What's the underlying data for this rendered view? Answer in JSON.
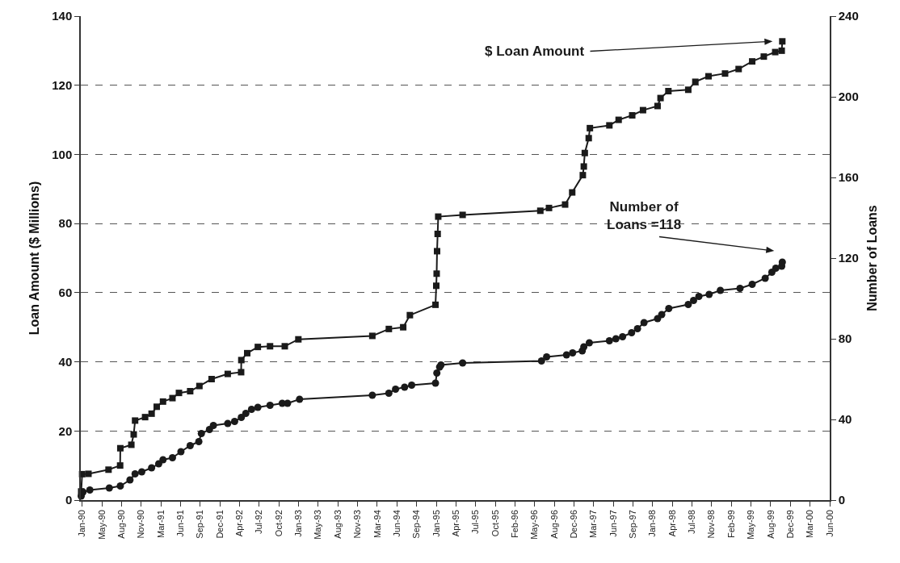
{
  "chart_data": {
    "type": "line",
    "ylabel": "Loan Amount ($ Millions)",
    "y2label": "Number of Loans",
    "xlim": [
      "1990-01-20",
      "2000-06-23"
    ],
    "xticks": [
      {
        "value": "1990-01-27",
        "label": "Jan-90"
      },
      {
        "value": "1990-05-07",
        "label": "May-90"
      },
      {
        "value": "1990-08-15",
        "label": "Aug-90"
      },
      {
        "value": "1990-11-23",
        "label": "Nov-90"
      },
      {
        "value": "1991-03-03",
        "label": "Mar-91"
      },
      {
        "value": "1991-06-11",
        "label": "Jun-91"
      },
      {
        "value": "1991-09-19",
        "label": "Sep-91"
      },
      {
        "value": "1991-12-28",
        "label": "Dec-91"
      },
      {
        "value": "1992-04-06",
        "label": "Apr-92"
      },
      {
        "value": "1992-07-15",
        "label": "Jul-92"
      },
      {
        "value": "1992-10-23",
        "label": "Oct-92"
      },
      {
        "value": "1993-01-31",
        "label": "Jan-93"
      },
      {
        "value": "1993-05-11",
        "label": "May-93"
      },
      {
        "value": "1993-08-19",
        "label": "Aug-93"
      },
      {
        "value": "1993-11-27",
        "label": "Nov-93"
      },
      {
        "value": "1994-03-07",
        "label": "Mar-94"
      },
      {
        "value": "1994-06-15",
        "label": "Jun-94"
      },
      {
        "value": "1994-09-23",
        "label": "Sep-94"
      },
      {
        "value": "1995-01-01",
        "label": "Jan-95"
      },
      {
        "value": "1995-04-11",
        "label": "Apr-95"
      },
      {
        "value": "1995-07-20",
        "label": "Jul-95"
      },
      {
        "value": "1995-10-28",
        "label": "Oct-95"
      },
      {
        "value": "1996-02-05",
        "label": "Feb-96"
      },
      {
        "value": "1996-05-15",
        "label": "May-96"
      },
      {
        "value": "1996-08-23",
        "label": "Aug-96"
      },
      {
        "value": "1996-12-01",
        "label": "Dec-96"
      },
      {
        "value": "1997-03-11",
        "label": "Mar-97"
      },
      {
        "value": "1997-06-19",
        "label": "Jun-97"
      },
      {
        "value": "1997-09-27",
        "label": "Sep-97"
      },
      {
        "value": "1998-01-05",
        "label": "Jan-98"
      },
      {
        "value": "1998-04-15",
        "label": "Apr-98"
      },
      {
        "value": "1998-07-24",
        "label": "Jul-98"
      },
      {
        "value": "1998-11-01",
        "label": "Nov-98"
      },
      {
        "value": "1999-02-09",
        "label": "Feb-99"
      },
      {
        "value": "1999-05-20",
        "label": "May-99"
      },
      {
        "value": "1999-08-28",
        "label": "Aug-99"
      },
      {
        "value": "1999-12-06",
        "label": "Dec-99"
      },
      {
        "value": "2000-03-15",
        "label": "Mar-00"
      },
      {
        "value": "2000-06-23",
        "label": "Jun-00"
      }
    ],
    "ylim": [
      0,
      140
    ],
    "yticks": [
      0,
      20,
      40,
      60,
      80,
      100,
      120,
      140
    ],
    "y2lim": [
      0,
      240
    ],
    "y2ticks": [
      0,
      40,
      80,
      120,
      160,
      200,
      240
    ],
    "annotations": [
      "$ Loan Amount",
      "Number of Loans =118"
    ],
    "grid": "y",
    "legend": false,
    "line_style": "solid",
    "series": [
      {
        "color": "#1a1a1a",
        "marker": "square",
        "x": [
          "1990-01-22",
          "1990-01-27",
          "1990-02-28",
          "1990-06-10",
          "1990-08-08",
          "1990-08-09",
          "1990-10-04",
          "1990-10-16",
          "1990-10-23",
          "1990-12-13",
          "1991-01-15",
          "1991-02-10",
          "1991-03-14",
          "1991-05-01",
          "1991-06-03",
          "1991-07-30",
          "1991-09-15",
          "1991-11-16",
          "1992-02-06",
          "1992-04-14",
          "1992-04-15",
          "1992-05-15",
          "1992-07-08",
          "1992-09-08",
          "1992-11-22",
          "1993-01-30",
          "1994-02-10",
          "1994-05-05",
          "1994-07-17",
          "1994-08-20",
          "1994-12-28",
          "1995-01-01",
          "1995-01-03",
          "1995-01-05",
          "1995-01-08",
          "1995-01-11",
          "1995-05-15",
          "1996-06-13",
          "1996-07-27",
          "1996-10-17",
          "1996-11-22",
          "1997-01-15",
          "1997-01-20",
          "1997-01-25",
          "1997-02-14",
          "1997-02-20",
          "1997-05-30",
          "1997-07-16",
          "1997-09-23",
          "1997-11-17",
          "1998-01-30",
          "1998-02-14",
          "1998-03-26",
          "1998-07-05",
          "1998-08-10",
          "1998-10-16",
          "1999-01-08",
          "1999-03-18",
          "1999-05-26",
          "1999-07-24",
          "1999-09-20",
          "1999-10-23",
          "1999-10-26"
        ],
        "values": [
          2.5,
          7.5,
          7.6,
          8.8,
          10,
          15,
          16,
          19,
          23,
          24,
          25,
          27,
          28.5,
          29.5,
          31,
          31.5,
          33,
          35,
          36.5,
          37,
          40.5,
          42.5,
          44.3,
          44.5,
          44.5,
          46.5,
          47.5,
          49.5,
          50,
          53.5,
          56.5,
          62,
          65.5,
          72,
          77,
          82,
          82.5,
          83.7,
          84.5,
          85.5,
          89,
          94,
          96.5,
          100.4,
          104.7,
          107.6,
          108.4,
          110,
          111.3,
          112.8,
          114,
          116.3,
          118.3,
          118.7,
          121,
          122.6,
          123.4,
          124.7,
          126.9,
          128.3,
          129.6,
          130,
          132.7
        ]
      },
      {
        "color": "#1a1a1a",
        "marker": "circle",
        "axis": "y2",
        "x": [
          "1990-01-22",
          "1990-01-31",
          "1990-03-07",
          "1990-06-14",
          "1990-08-09",
          "1990-09-27",
          "1990-10-23",
          "1990-11-26",
          "1991-01-15",
          "1991-02-20",
          "1991-03-14",
          "1991-05-01",
          "1991-06-13",
          "1991-07-30",
          "1991-09-12",
          "1991-09-25",
          "1991-11-05",
          "1991-11-25",
          "1992-02-06",
          "1992-03-12",
          "1992-04-15",
          "1992-05-08",
          "1992-06-06",
          "1992-07-08",
          "1992-09-08",
          "1992-11-09",
          "1992-12-06",
          "1993-02-05",
          "1994-02-10",
          "1994-05-05",
          "1994-06-08",
          "1994-07-24",
          "1994-08-29",
          "1994-12-28",
          "1995-01-04",
          "1995-01-18",
          "1995-01-25",
          "1995-05-15",
          "1996-06-19",
          "1996-07-15",
          "1996-10-24",
          "1996-11-24",
          "1997-01-12",
          "1997-01-20",
          "1997-02-17",
          "1997-05-30",
          "1997-07-02",
          "1997-08-05",
          "1997-09-20",
          "1997-10-20",
          "1997-11-22",
          "1998-01-30",
          "1998-02-20",
          "1998-03-28",
          "1998-07-05",
          "1998-08-01",
          "1998-08-28",
          "1998-10-19",
          "1998-12-15",
          "1999-03-25",
          "1999-05-26",
          "1999-07-31",
          "1999-09-03",
          "1999-09-23",
          "1999-10-23",
          "1999-10-26"
        ],
        "values": [
          2,
          4,
          5,
          6,
          7,
          10,
          13,
          14,
          16,
          18,
          20,
          21,
          24,
          27,
          29,
          33,
          35,
          37,
          38,
          39,
          41,
          43,
          45,
          46,
          47,
          48,
          48,
          50,
          52,
          53,
          55,
          56,
          57,
          58,
          63,
          66,
          67,
          68,
          69,
          71,
          72,
          73,
          74,
          76,
          78,
          79,
          80,
          81,
          83,
          85,
          88,
          90,
          92,
          95,
          97,
          99,
          101,
          102,
          104,
          105,
          107,
          110,
          113,
          115,
          116,
          118
        ]
      }
    ]
  }
}
